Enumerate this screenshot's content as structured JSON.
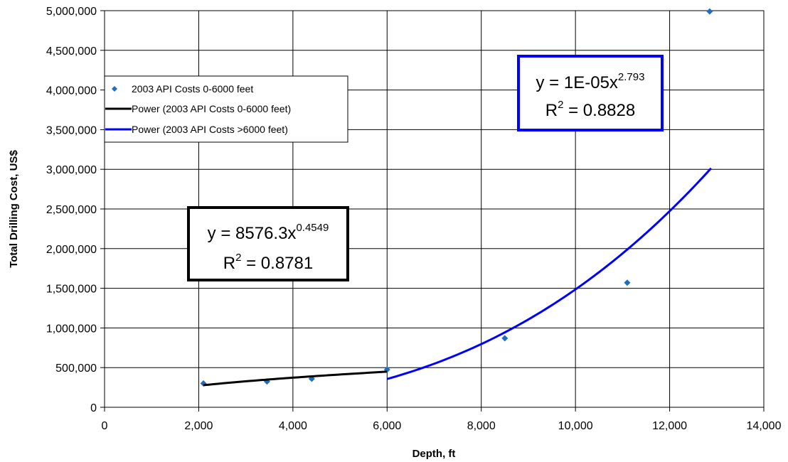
{
  "chart_data": {
    "type": "scatter",
    "title": "",
    "xlabel": "Depth, ft",
    "ylabel": "Total Drilling Cost, US$",
    "xlim": [
      0,
      14000
    ],
    "ylim": [
      0,
      5000000
    ],
    "x_ticks": [
      0,
      2000,
      4000,
      6000,
      8000,
      10000,
      12000,
      14000
    ],
    "y_ticks": [
      0,
      500000,
      1000000,
      1500000,
      2000000,
      2500000,
      3000000,
      3500000,
      4000000,
      4500000,
      5000000
    ],
    "x_tick_labels": [
      "0",
      "2,000",
      "4,000",
      "6,000",
      "8,000",
      "10,000",
      "12,000",
      "14,000"
    ],
    "y_tick_labels": [
      "0",
      "500,000",
      "1,000,000",
      "1,500,000",
      "2,000,000",
      "2,500,000",
      "3,000,000",
      "3,500,000",
      "4,000,000",
      "4,500,000",
      "5,000,000"
    ],
    "grid": true,
    "legend_position": "upper-left",
    "series": [
      {
        "name": "2003 API Costs 0-6000 feet",
        "kind": "scatter",
        "color": "#1f6fc0",
        "marker": "diamond",
        "points": [
          [
            2100,
            300000
          ],
          [
            3450,
            325000
          ],
          [
            4400,
            360000
          ],
          [
            6000,
            475000
          ],
          [
            8500,
            870000
          ],
          [
            11100,
            1570000
          ],
          [
            12850,
            4990000
          ]
        ]
      },
      {
        "name": "Power (2003 API Costs 0-6000 feet)",
        "kind": "trendline",
        "color": "#000000",
        "coefficient": 8576.3,
        "exponent": 0.4549,
        "x_range": [
          2100,
          6000
        ]
      },
      {
        "name": "Power (2003 API Costs >6000 feet)",
        "kind": "trendline",
        "color": "#0000ff",
        "coefficient": 1e-05,
        "exponent": 2.793,
        "x_range": [
          6000,
          12880
        ]
      }
    ],
    "annotations": [
      {
        "line1_prefix": "y = 8576.3x",
        "line1_sup": "0.4549",
        "line2_prefix": "R",
        "line2_sup": "2",
        "line2_suffix": " = 0.8781",
        "border_color": "#000000"
      },
      {
        "line1_prefix": "y = 1E-05x",
        "line1_sup": "2.793",
        "line2_prefix": "R",
        "line2_sup": "2",
        "line2_suffix": " = 0.8828",
        "border_color": "#0000ff"
      }
    ]
  }
}
